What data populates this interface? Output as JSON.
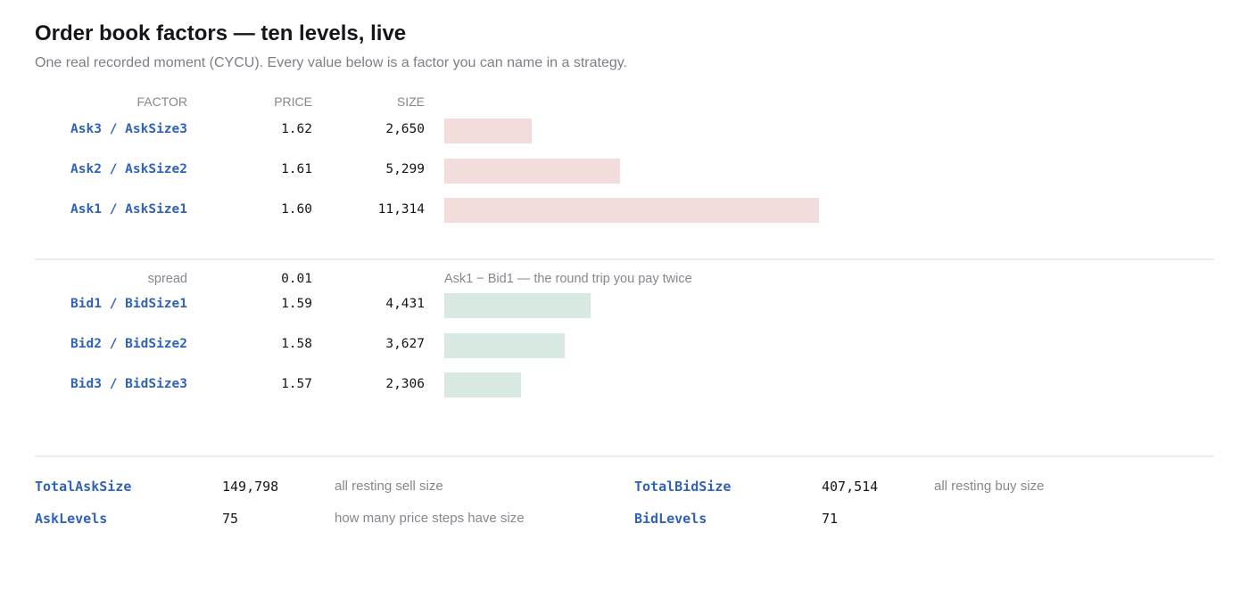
{
  "header": {
    "title": "Order book factors — ten levels, live",
    "subtitle": "One real recorded moment (CYCU). Every value below is a factor you can name in a strategy."
  },
  "columns": {
    "factor": "FACTOR",
    "price": "PRICE",
    "size": "SIZE"
  },
  "colors": {
    "ask_bar": "#f3dcdc",
    "bid_bar": "#d8e9e2",
    "factor_text": "#2f62b8",
    "muted_text": "#85878e"
  },
  "chart_data": {
    "type": "bar",
    "orientation": "horizontal",
    "categories": [
      "Ask3 / AskSize3",
      "Ask2 / AskSize2",
      "Ask1 / AskSize1",
      "Bid1 / BidSize1",
      "Bid2 / BidSize2",
      "Bid3 / BidSize3"
    ],
    "ask_levels": [
      {
        "factor": "Ask3 / AskSize3",
        "price": "1.62",
        "size": 2650,
        "size_label": "2,650"
      },
      {
        "factor": "Ask2 / AskSize2",
        "price": "1.61",
        "size": 5299,
        "size_label": "5,299"
      },
      {
        "factor": "Ask1 / AskSize1",
        "price": "1.60",
        "size": 11314,
        "size_label": "11,314"
      }
    ],
    "bid_levels": [
      {
        "factor": "Bid1 / BidSize1",
        "price": "1.59",
        "size": 4431,
        "size_label": "4,431"
      },
      {
        "factor": "Bid2 / BidSize2",
        "price": "1.58",
        "size": 3627,
        "size_label": "3,627"
      },
      {
        "factor": "Bid3 / BidSize3",
        "price": "1.57",
        "size": 2306,
        "size_label": "2,306"
      }
    ],
    "spread": {
      "label": "spread",
      "value": "0.01",
      "note": "Ask1 − Bid1 — the round trip you pay twice"
    },
    "xlim": [
      0,
      11314
    ],
    "grid": false
  },
  "totals": {
    "total_ask_size": {
      "name": "TotalAskSize",
      "value": "149,798",
      "note": "all resting sell size"
    },
    "ask_levels": {
      "name": "AskLevels",
      "value": "75",
      "note": "how many price steps have size"
    },
    "total_bid_size": {
      "name": "TotalBidSize",
      "value": "407,514",
      "note": "all resting buy size"
    },
    "bid_levels": {
      "name": "BidLevels",
      "value": "71",
      "note": ""
    }
  }
}
